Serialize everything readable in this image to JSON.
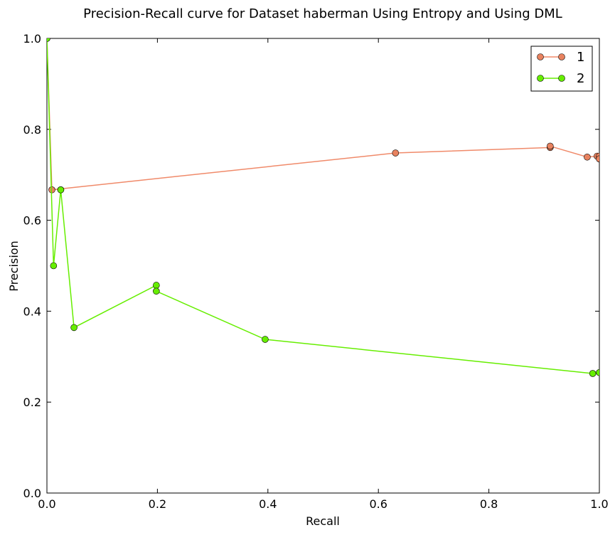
{
  "chart_data": {
    "type": "line",
    "title": "Precision-Recall curve for Dataset haberman Using Entropy and Using DML",
    "xlabel": "Recall",
    "ylabel": "Precision",
    "xlim": [
      0.0,
      1.0
    ],
    "ylim": [
      0.0,
      1.0
    ],
    "xticks": [
      "0.0",
      "0.2",
      "0.4",
      "0.6",
      "0.8",
      "1.0"
    ],
    "yticks": [
      "0.0",
      "0.2",
      "0.4",
      "0.6",
      "0.8",
      "1.0"
    ],
    "grid": false,
    "legend_position": "top-right",
    "series": [
      {
        "name": "1",
        "color": "#f08a6a",
        "marker_color": "#e8825f",
        "x": [
          0.0,
          0.009,
          0.631,
          0.911,
          0.911,
          0.978,
          0.996,
          1.0,
          1.0
        ],
        "y": [
          1.0,
          0.667,
          0.748,
          0.76,
          0.763,
          0.739,
          0.741,
          0.741,
          0.735
        ]
      },
      {
        "name": "2",
        "color": "#66ee00",
        "marker_color": "#66ee00",
        "x": [
          0.0,
          0.012,
          0.025,
          0.025,
          0.049,
          0.198,
          0.198,
          0.395,
          0.988,
          1.0
        ],
        "y": [
          1.0,
          0.5,
          0.667,
          0.667,
          0.364,
          0.457,
          0.444,
          0.338,
          0.263,
          0.265
        ]
      }
    ]
  }
}
